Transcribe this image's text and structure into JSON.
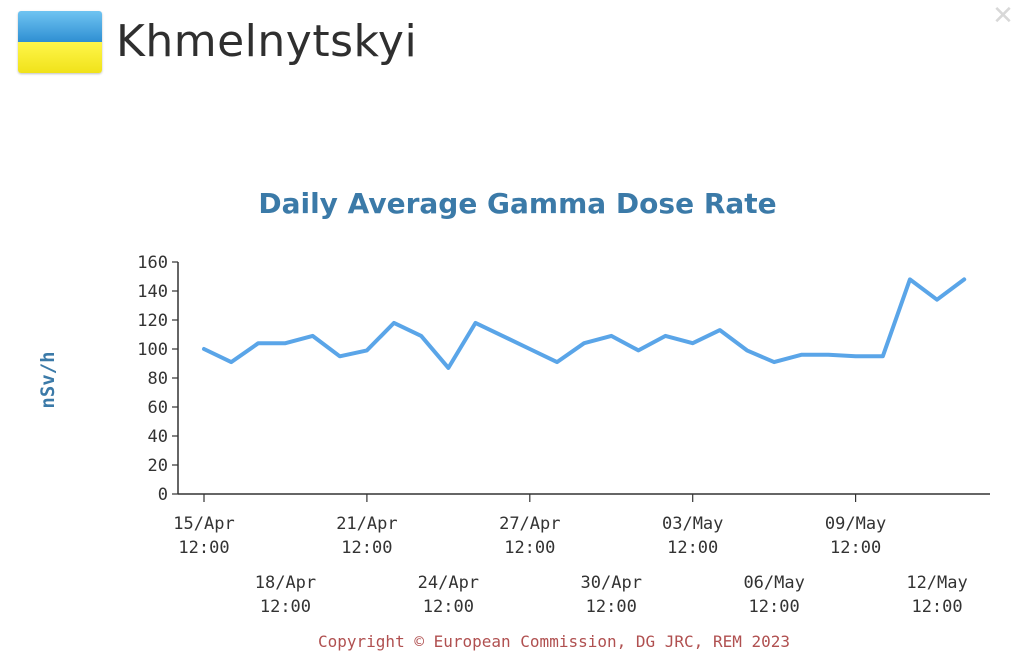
{
  "header": {
    "title": "Khmelnytskyi",
    "flag_icon": "ukraine-flag-icon",
    "close_icon": "close-icon"
  },
  "footer": {
    "copyright": "Copyright © European Commission, DG JRC, REM 2023"
  },
  "chart_data": {
    "type": "line",
    "title": "Daily Average Gamma Dose Rate",
    "xlabel": "",
    "ylabel": "nSv/h",
    "ylim": [
      0,
      160
    ],
    "yticks": [
      0,
      20,
      40,
      60,
      80,
      100,
      120,
      140,
      160
    ],
    "grid": false,
    "color": "#5aa5e8",
    "xticks": [
      {
        "index": 0,
        "label": [
          "15/Apr",
          "12:00"
        ],
        "row": 0
      },
      {
        "index": 3,
        "label": [
          "18/Apr",
          "12:00"
        ],
        "row": 1
      },
      {
        "index": 6,
        "label": [
          "21/Apr",
          "12:00"
        ],
        "row": 0
      },
      {
        "index": 9,
        "label": [
          "24/Apr",
          "12:00"
        ],
        "row": 1
      },
      {
        "index": 12,
        "label": [
          "27/Apr",
          "12:00"
        ],
        "row": 0
      },
      {
        "index": 15,
        "label": [
          "30/Apr",
          "12:00"
        ],
        "row": 1
      },
      {
        "index": 18,
        "label": [
          "03/May",
          "12:00"
        ],
        "row": 0
      },
      {
        "index": 21,
        "label": [
          "06/May",
          "12:00"
        ],
        "row": 1
      },
      {
        "index": 24,
        "label": [
          "09/May",
          "12:00"
        ],
        "row": 0
      },
      {
        "index": 27,
        "label": [
          "12/May",
          "12:00"
        ],
        "row": 1
      }
    ],
    "series": [
      {
        "values": [
          100,
          91,
          104,
          104,
          109,
          95,
          99,
          118,
          109,
          87,
          118,
          109,
          100,
          91,
          104,
          109,
          99,
          109,
          104,
          113,
          99,
          91,
          96,
          96,
          95,
          95,
          148,
          134,
          148
        ]
      }
    ]
  }
}
